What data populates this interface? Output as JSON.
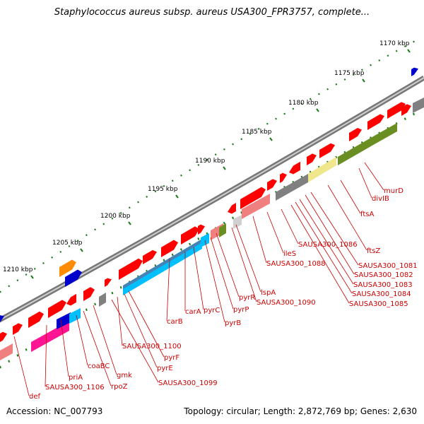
{
  "title": "Staphylococcus aureus subsp. aureus USA300_FPR3757, complete...",
  "footer": {
    "accession": "Accession: NC_007793",
    "summary": "Topology: circular; Length: 2,872,769 bp; Genes: 2,630"
  },
  "colors": {
    "backbone": "#8c8c8c",
    "gene_forward": "#ff0000",
    "gene_reverse": "#ff0000",
    "label": "#cc0000",
    "gc_dots": "#1a7a1a",
    "cog_olive": "#6b8e23",
    "cog_yellow": "#f0e68c",
    "cog_pink": "#f08080",
    "cog_cyan": "#00bfff",
    "cog_blue": "#0000cd",
    "cog_magenta": "#ff1493",
    "cog_orange": "#ff8c00",
    "cog_gray": "#808080"
  },
  "kbp_ticks": [
    {
      "label": "1170 kbp"
    },
    {
      "label": "1175 kbp"
    },
    {
      "label": "1180 kbp"
    },
    {
      "label": "1185 kbp"
    },
    {
      "label": "1190 kbp"
    },
    {
      "label": "1195 kbp"
    },
    {
      "label": "1200 kbp"
    },
    {
      "label": "1205 kbp"
    },
    {
      "label": "1210 kbp"
    }
  ],
  "gene_labels": [
    {
      "text": "murD"
    },
    {
      "text": "divIB"
    },
    {
      "text": "ftsA"
    },
    {
      "text": "ftsZ"
    },
    {
      "text": "SAUSA300_1081"
    },
    {
      "text": "SAUSA300_1082"
    },
    {
      "text": "SAUSA300_1083"
    },
    {
      "text": "SAUSA300_1084"
    },
    {
      "text": "SAUSA300_1085"
    },
    {
      "text": "SAUSA300_1086"
    },
    {
      "text": "ileS"
    },
    {
      "text": "SAUSA300_1088"
    },
    {
      "text": "lspA"
    },
    {
      "text": "SAUSA300_1090"
    },
    {
      "text": "pyrR"
    },
    {
      "text": "pyrP"
    },
    {
      "text": "pyrB"
    },
    {
      "text": "pyrC"
    },
    {
      "text": "carA"
    },
    {
      "text": "carB"
    },
    {
      "text": "SAUSA300_1100"
    },
    {
      "text": "pyrF"
    },
    {
      "text": "pyrE"
    },
    {
      "text": "SAUSA300_1099"
    },
    {
      "text": "gmk"
    },
    {
      "text": "rpoZ"
    },
    {
      "text": "coaBC"
    },
    {
      "text": "priA"
    },
    {
      "text": "SAUSA300_1106"
    },
    {
      "text": "def"
    }
  ]
}
